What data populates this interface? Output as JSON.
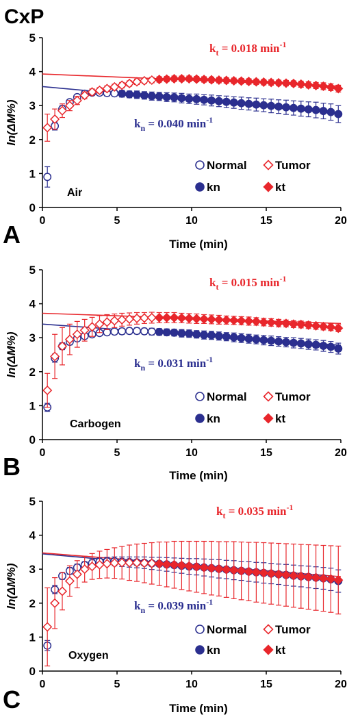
{
  "figure": {
    "title": "CxP",
    "colors": {
      "normal": "#2b2f8f",
      "tumor": "#e8262b",
      "axis": "#000000"
    }
  },
  "chart_data": [
    {
      "panel": "A",
      "type": "scatter",
      "condition_label": "Air",
      "xlabel": "Time (min)",
      "ylabel": "ln(ΔM%)",
      "xlim": [
        0,
        20
      ],
      "ylim": [
        0,
        5
      ],
      "xticks": [
        "0",
        "5",
        "10",
        "15",
        "20"
      ],
      "yticks": [
        "0",
        "1",
        "2",
        "3",
        "4",
        "5"
      ],
      "legend": [
        "Normal",
        "Tumor",
        "kn",
        "kt"
      ],
      "kn_label": {
        "k": "k",
        "sub": "n",
        "text": " = 0.040 min",
        "sup": "-1"
      },
      "kt_label": {
        "k": "k",
        "sub": "t",
        "text": " = 0.018 min",
        "sup": "-1"
      },
      "normal_fit": {
        "intercept": 3.56,
        "slope": -0.04
      },
      "tumor_fit": {
        "intercept": 3.93,
        "slope": -0.018
      },
      "normal": {
        "x": [
          0.33,
          0.83,
          1.33,
          1.83,
          2.33,
          2.83,
          3.33,
          3.83,
          4.33,
          4.83,
          5.33,
          5.83,
          6.33,
          6.83,
          7.33,
          7.83,
          8.33,
          8.83,
          9.33,
          9.83,
          10.33,
          10.83,
          11.33,
          11.83,
          12.33,
          12.83,
          13.33,
          13.83,
          14.33,
          14.83,
          15.33,
          15.83,
          16.33,
          16.83,
          17.33,
          17.83,
          18.33,
          18.83,
          19.33,
          19.83
        ],
        "y": [
          0.9,
          2.4,
          2.9,
          3.1,
          3.25,
          3.35,
          3.38,
          3.38,
          3.37,
          3.36,
          3.35,
          3.33,
          3.32,
          3.3,
          3.28,
          3.27,
          3.25,
          3.24,
          3.22,
          3.2,
          3.19,
          3.17,
          3.15,
          3.13,
          3.11,
          3.09,
          3.07,
          3.05,
          3.03,
          3.01,
          2.99,
          2.97,
          2.95,
          2.93,
          2.91,
          2.89,
          2.87,
          2.84,
          2.81,
          2.75
        ],
        "err": [
          0.3,
          0.12,
          0.1,
          0.08,
          0.08,
          0.08,
          0.08,
          0.08,
          0.09,
          0.09,
          0.1,
          0.1,
          0.11,
          0.11,
          0.12,
          0.12,
          0.13,
          0.13,
          0.14,
          0.14,
          0.15,
          0.15,
          0.16,
          0.16,
          0.17,
          0.17,
          0.18,
          0.18,
          0.19,
          0.19,
          0.2,
          0.2,
          0.21,
          0.21,
          0.22,
          0.22,
          0.23,
          0.23,
          0.24,
          0.25
        ],
        "fit_from": 5
      },
      "tumor": {
        "x": [
          0.33,
          0.83,
          1.33,
          1.83,
          2.33,
          2.83,
          3.33,
          3.83,
          4.33,
          4.83,
          5.33,
          5.83,
          6.33,
          6.83,
          7.33,
          7.83,
          8.33,
          8.83,
          9.33,
          9.83,
          10.33,
          10.83,
          11.33,
          11.83,
          12.33,
          12.83,
          13.33,
          13.83,
          14.33,
          14.83,
          15.33,
          15.83,
          16.33,
          16.83,
          17.33,
          17.83,
          18.33,
          18.83,
          19.33,
          19.83
        ],
        "y": [
          2.35,
          2.6,
          2.85,
          3.0,
          3.15,
          3.3,
          3.4,
          3.45,
          3.5,
          3.55,
          3.6,
          3.65,
          3.7,
          3.73,
          3.75,
          3.77,
          3.78,
          3.79,
          3.79,
          3.79,
          3.78,
          3.77,
          3.76,
          3.75,
          3.74,
          3.73,
          3.72,
          3.71,
          3.7,
          3.69,
          3.68,
          3.67,
          3.66,
          3.65,
          3.63,
          3.61,
          3.59,
          3.57,
          3.54,
          3.5
        ],
        "err": [
          0.4,
          0.3,
          0.2,
          0.15,
          0.12,
          0.1,
          0.09,
          0.08,
          0.08,
          0.08,
          0.08,
          0.08,
          0.08,
          0.08,
          0.08,
          0.08,
          0.08,
          0.08,
          0.08,
          0.08,
          0.08,
          0.08,
          0.08,
          0.08,
          0.08,
          0.08,
          0.08,
          0.08,
          0.08,
          0.08,
          0.08,
          0.08,
          0.08,
          0.08,
          0.09,
          0.09,
          0.09,
          0.1,
          0.1,
          0.1
        ],
        "fit_from": 7.5
      }
    },
    {
      "panel": "B",
      "type": "scatter",
      "condition_label": "Carbogen",
      "xlabel": "Time (min)",
      "ylabel": "ln(ΔM%)",
      "xlim": [
        0,
        20
      ],
      "ylim": [
        0,
        5
      ],
      "xticks": [
        "0",
        "5",
        "10",
        "15",
        "20"
      ],
      "yticks": [
        "0",
        "1",
        "2",
        "3",
        "4",
        "5"
      ],
      "legend": [
        "Normal",
        "Tumor",
        "kn",
        "kt"
      ],
      "kn_label": {
        "k": "k",
        "sub": "n",
        "text": " = 0.031 min",
        "sup": "-1"
      },
      "kt_label": {
        "k": "k",
        "sub": "t",
        "text": " = 0.015 min",
        "sup": "-1"
      },
      "normal_fit": {
        "intercept": 3.4,
        "slope": -0.031
      },
      "tumor_fit": {
        "intercept": 3.72,
        "slope": -0.015
      },
      "normal": {
        "x": [
          0.33,
          0.83,
          1.33,
          1.83,
          2.33,
          2.83,
          3.33,
          3.83,
          4.33,
          4.83,
          5.33,
          5.83,
          6.33,
          6.83,
          7.33,
          7.83,
          8.33,
          8.83,
          9.33,
          9.83,
          10.33,
          10.83,
          11.33,
          11.83,
          12.33,
          12.83,
          13.33,
          13.83,
          14.33,
          14.83,
          15.33,
          15.83,
          16.33,
          16.83,
          17.33,
          17.83,
          18.33,
          18.83,
          19.33,
          19.83
        ],
        "y": [
          0.95,
          2.4,
          2.75,
          2.88,
          2.98,
          3.05,
          3.1,
          3.14,
          3.16,
          3.18,
          3.19,
          3.2,
          3.2,
          3.19,
          3.18,
          3.17,
          3.16,
          3.15,
          3.13,
          3.12,
          3.1,
          3.08,
          3.07,
          3.05,
          3.03,
          3.01,
          2.99,
          2.97,
          2.95,
          2.93,
          2.91,
          2.89,
          2.87,
          2.85,
          2.83,
          2.81,
          2.79,
          2.76,
          2.73,
          2.68
        ],
        "err": [
          0.12,
          0.12,
          0.1,
          0.09,
          0.08,
          0.08,
          0.08,
          0.08,
          0.08,
          0.08,
          0.09,
          0.09,
          0.09,
          0.09,
          0.1,
          0.1,
          0.1,
          0.1,
          0.11,
          0.11,
          0.11,
          0.12,
          0.12,
          0.12,
          0.12,
          0.13,
          0.13,
          0.13,
          0.13,
          0.14,
          0.14,
          0.14,
          0.14,
          0.15,
          0.15,
          0.15,
          0.15,
          0.16,
          0.16,
          0.16
        ],
        "fit_from": 7.5
      },
      "tumor": {
        "x": [
          0.33,
          0.83,
          1.33,
          1.83,
          2.33,
          2.83,
          3.33,
          3.83,
          4.33,
          4.83,
          5.33,
          5.83,
          6.33,
          6.83,
          7.33,
          7.83,
          8.33,
          8.83,
          9.33,
          9.83,
          10.33,
          10.83,
          11.33,
          11.83,
          12.33,
          12.83,
          13.33,
          13.83,
          14.33,
          14.83,
          15.33,
          15.83,
          16.33,
          16.83,
          17.33,
          17.83,
          18.33,
          18.83,
          19.33,
          19.83
        ],
        "y": [
          1.45,
          2.45,
          2.75,
          2.95,
          3.1,
          3.22,
          3.32,
          3.4,
          3.46,
          3.5,
          3.53,
          3.55,
          3.57,
          3.58,
          3.59,
          3.59,
          3.59,
          3.59,
          3.58,
          3.57,
          3.56,
          3.55,
          3.54,
          3.53,
          3.52,
          3.51,
          3.5,
          3.49,
          3.48,
          3.46,
          3.45,
          3.43,
          3.42,
          3.4,
          3.39,
          3.37,
          3.35,
          3.33,
          3.31,
          3.28
        ],
        "err": [
          0.5,
          0.65,
          0.55,
          0.45,
          0.38,
          0.32,
          0.28,
          0.25,
          0.22,
          0.2,
          0.19,
          0.18,
          0.17,
          0.16,
          0.16,
          0.15,
          0.15,
          0.15,
          0.14,
          0.14,
          0.14,
          0.13,
          0.13,
          0.13,
          0.12,
          0.12,
          0.12,
          0.12,
          0.11,
          0.11,
          0.11,
          0.11,
          0.1,
          0.1,
          0.1,
          0.1,
          0.1,
          0.1,
          0.1,
          0.1
        ],
        "fit_from": 7.5
      }
    },
    {
      "panel": "C",
      "type": "scatter",
      "condition_label": "Oxygen",
      "xlabel": "Time (min)",
      "ylabel": "ln(ΔM%)",
      "xlim": [
        0,
        20
      ],
      "ylim": [
        0,
        5
      ],
      "xticks": [
        "0",
        "5",
        "10",
        "15",
        "20"
      ],
      "yticks": [
        "0",
        "1",
        "2",
        "3",
        "4",
        "5"
      ],
      "legend": [
        "Normal",
        "Tumor",
        "kn",
        "kt"
      ],
      "kn_label": {
        "k": "k",
        "sub": "n",
        "text": " = 0.039 min",
        "sup": "-1"
      },
      "kt_label": {
        "k": "k",
        "sub": "t",
        "text": " = 0.035 min",
        "sup": "-1"
      },
      "normal_fit": {
        "intercept": 3.45,
        "slope": -0.039
      },
      "tumor_fit": {
        "intercept": 3.48,
        "slope": -0.035
      },
      "normal": {
        "x": [
          0.33,
          0.83,
          1.33,
          1.83,
          2.33,
          2.83,
          3.33,
          3.83,
          4.33,
          4.83,
          5.33,
          5.83,
          6.33,
          6.83,
          7.33,
          7.83,
          8.33,
          8.83,
          9.33,
          9.83,
          10.33,
          10.83,
          11.33,
          11.83,
          12.33,
          12.83,
          13.33,
          13.83,
          14.33,
          14.83,
          15.33,
          15.83,
          16.33,
          16.83,
          17.33,
          17.83,
          18.33,
          18.83,
          19.33,
          19.83
        ],
        "y": [
          0.75,
          2.4,
          2.8,
          2.95,
          3.05,
          3.12,
          3.18,
          3.22,
          3.23,
          3.23,
          3.22,
          3.21,
          3.2,
          3.19,
          3.17,
          3.16,
          3.14,
          3.12,
          3.1,
          3.08,
          3.07,
          3.05,
          3.03,
          3.01,
          2.99,
          2.97,
          2.95,
          2.93,
          2.91,
          2.89,
          2.87,
          2.85,
          2.83,
          2.81,
          2.79,
          2.77,
          2.75,
          2.73,
          2.7,
          2.65
        ],
        "err": [
          0.15,
          0.12,
          0.1,
          0.1,
          0.1,
          0.1,
          0.1,
          0.11,
          0.12,
          0.13,
          0.14,
          0.15,
          0.16,
          0.17,
          0.18,
          0.19,
          0.2,
          0.21,
          0.22,
          0.23,
          0.24,
          0.25,
          0.26,
          0.27,
          0.27,
          0.28,
          0.28,
          0.29,
          0.29,
          0.3,
          0.3,
          0.3,
          0.31,
          0.31,
          0.31,
          0.32,
          0.32,
          0.32,
          0.33,
          0.33
        ],
        "fit_from": 7.5
      },
      "tumor": {
        "x": [
          0.33,
          0.83,
          1.33,
          1.83,
          2.33,
          2.83,
          3.33,
          3.83,
          4.33,
          4.83,
          5.33,
          5.83,
          6.33,
          6.83,
          7.33,
          7.83,
          8.33,
          8.83,
          9.33,
          9.83,
          10.33,
          10.83,
          11.33,
          11.83,
          12.33,
          12.83,
          13.33,
          13.83,
          14.33,
          14.83,
          15.33,
          15.83,
          16.33,
          16.83,
          17.33,
          17.83,
          18.33,
          18.83,
          19.33,
          19.83
        ],
        "y": [
          1.3,
          2.0,
          2.35,
          2.65,
          2.85,
          3.0,
          3.08,
          3.13,
          3.16,
          3.18,
          3.19,
          3.19,
          3.19,
          3.18,
          3.17,
          3.16,
          3.14,
          3.13,
          3.11,
          3.09,
          3.07,
          3.05,
          3.03,
          3.01,
          2.99,
          2.97,
          2.95,
          2.93,
          2.91,
          2.89,
          2.87,
          2.85,
          2.83,
          2.81,
          2.79,
          2.77,
          2.75,
          2.73,
          2.71,
          2.68
        ],
        "err": [
          1.15,
          0.75,
          0.55,
          0.45,
          0.4,
          0.38,
          0.38,
          0.4,
          0.42,
          0.45,
          0.48,
          0.52,
          0.55,
          0.58,
          0.61,
          0.64,
          0.66,
          0.69,
          0.71,
          0.73,
          0.75,
          0.77,
          0.79,
          0.8,
          0.82,
          0.84,
          0.85,
          0.86,
          0.88,
          0.89,
          0.9,
          0.91,
          0.92,
          0.93,
          0.94,
          0.95,
          0.96,
          0.97,
          0.98,
          1.0
        ],
        "fit_from": 7.5
      }
    }
  ]
}
